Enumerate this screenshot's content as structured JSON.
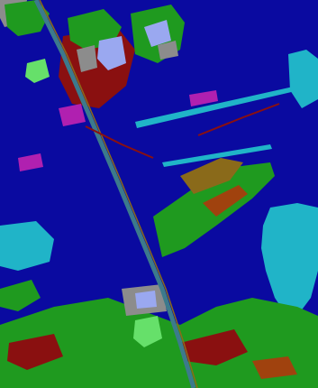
{
  "image": {
    "kind": "land cover classification map",
    "text": ""
  },
  "palette": {
    "water": "#0a0aa0",
    "vegetation": "#1f9a1f",
    "bare_soil": "#a0420e",
    "crop_dry": "#8a6a1a",
    "urban_bright": "#9aa8f0",
    "built_gray": "#8c8c8c",
    "magenta_class": "#b020b0",
    "cyan_class": "#20b4c8",
    "light_green": "#66e06a",
    "dark_red": "#8a1010",
    "road": "#3c7a8c"
  },
  "legend_classes": [
    "water",
    "vegetation",
    "bare_soil",
    "crop_dry",
    "urban_bright",
    "built_gray",
    "magenta_class",
    "cyan_class",
    "light_green",
    "dark_red",
    "road"
  ]
}
